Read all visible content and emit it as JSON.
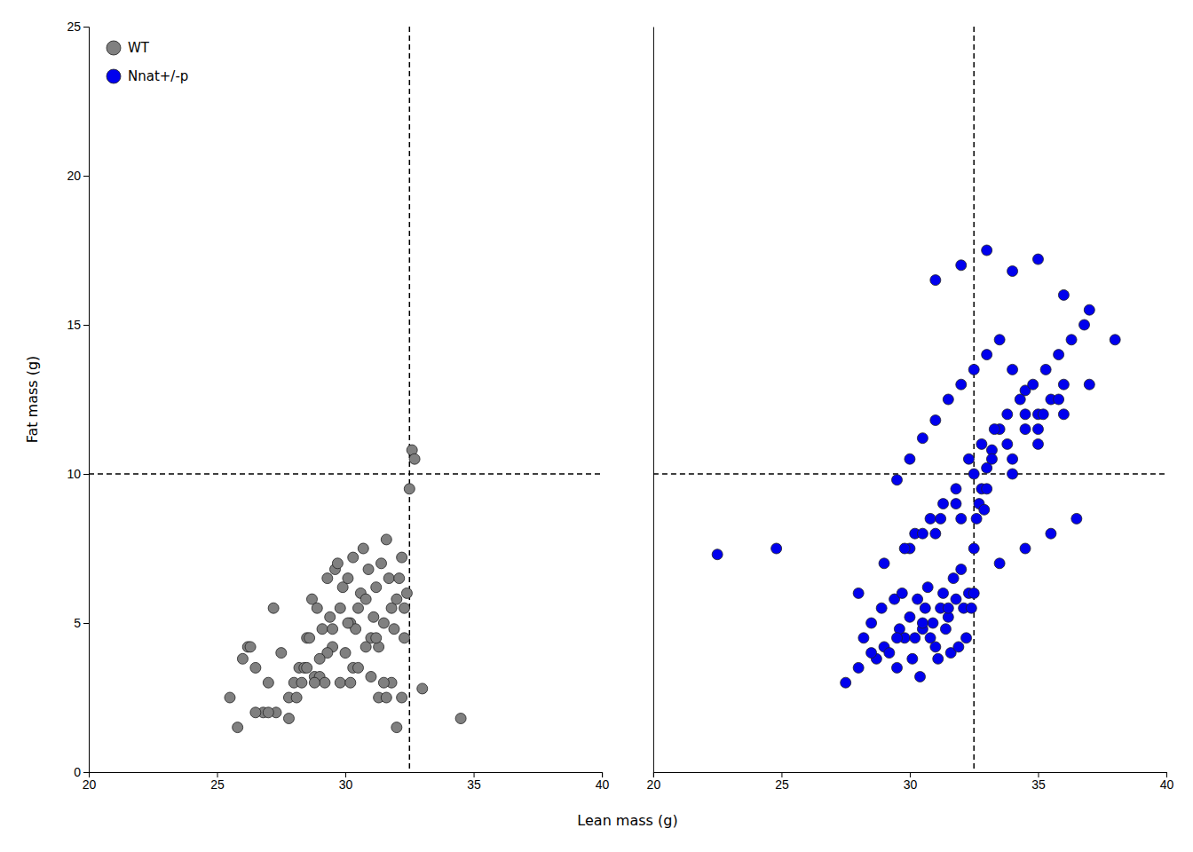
{
  "chart_data": [
    {
      "type": "scatter",
      "xlabel": "Lean mass (g)",
      "ylabel": "Fat mass (g)",
      "xlim": [
        20,
        40
      ],
      "ylim": [
        0,
        25
      ],
      "xticks": [
        20,
        25,
        30,
        35,
        40
      ],
      "yticks": [
        0,
        5,
        10,
        15,
        20,
        25
      ],
      "hlines": [
        10.0
      ],
      "vlines": [
        32.5
      ],
      "legend": "upper left",
      "series": [
        {
          "name": "WT",
          "color": "#808080",
          "marker": "circle",
          "x": [
            25.5,
            26.0,
            26.2,
            26.5,
            26.8,
            27.0,
            27.2,
            27.5,
            27.8,
            28.0,
            28.1,
            28.2,
            28.4,
            28.5,
            28.6,
            28.7,
            28.8,
            28.9,
            29.0,
            29.1,
            29.2,
            29.3,
            29.4,
            29.5,
            29.6,
            29.7,
            29.8,
            29.9,
            30.0,
            30.1,
            30.2,
            30.3,
            30.4,
            30.5,
            30.6,
            30.7,
            30.8,
            30.9,
            31.0,
            31.1,
            31.2,
            31.3,
            31.4,
            31.5,
            31.6,
            31.7,
            31.8,
            31.9,
            32.0,
            32.1,
            32.2,
            32.3,
            32.4,
            32.5,
            32.6,
            32.7,
            33.0,
            34.5,
            26.3,
            27.3,
            28.3,
            29.3,
            30.3,
            31.3,
            32.3,
            25.8,
            27.0,
            28.5,
            29.8,
            30.5,
            31.2,
            31.8,
            32.2,
            26.5,
            27.8,
            29.0,
            30.1,
            31.0,
            31.6,
            32.0,
            28.8,
            29.5,
            30.2,
            30.8,
            31.5
          ],
          "values": [
            2.5,
            3.8,
            4.2,
            3.5,
            2.0,
            3.0,
            5.5,
            4.0,
            2.5,
            3.0,
            2.5,
            3.5,
            3.5,
            4.5,
            4.5,
            5.8,
            3.2,
            5.5,
            3.2,
            4.8,
            3.0,
            6.5,
            5.2,
            4.2,
            6.8,
            7.0,
            5.5,
            6.2,
            4.0,
            6.5,
            5.0,
            7.2,
            4.8,
            5.5,
            6.0,
            7.5,
            5.8,
            6.8,
            4.5,
            5.2,
            6.2,
            4.2,
            7.0,
            5.0,
            7.8,
            6.5,
            5.5,
            4.8,
            5.8,
            6.5,
            7.2,
            5.5,
            6.0,
            9.5,
            10.8,
            10.5,
            2.8,
            1.8,
            4.2,
            2.0,
            3.0,
            4.0,
            3.5,
            2.5,
            4.5,
            1.5,
            2.0,
            3.5,
            3.0,
            3.5,
            4.5,
            3.0,
            2.5,
            2.0,
            1.8,
            3.8,
            5.0,
            3.2,
            2.5,
            1.5,
            3.0,
            4.8,
            3.0,
            4.2,
            3.0
          ]
        }
      ]
    },
    {
      "type": "scatter",
      "xlim": [
        20,
        40
      ],
      "ylim": [
        0,
        25
      ],
      "xticks": [
        20,
        25,
        30,
        35,
        40
      ],
      "tick_labels": "x",
      "hlines": [
        10.0
      ],
      "vlines": [
        32.5
      ],
      "series": [
        {
          "name": "Nnat+/-p",
          "color": "#0000EE",
          "marker": "circle",
          "x": [
            22.5,
            24.8,
            27.5,
            28.0,
            28.2,
            28.5,
            28.7,
            28.9,
            29.0,
            29.2,
            29.4,
            29.5,
            29.6,
            29.7,
            29.8,
            30.0,
            30.1,
            30.2,
            30.3,
            30.4,
            30.5,
            30.6,
            30.7,
            30.8,
            30.9,
            31.0,
            31.1,
            31.2,
            31.3,
            31.4,
            31.5,
            31.6,
            31.7,
            31.8,
            31.9,
            32.0,
            32.1,
            32.2,
            32.3,
            32.4,
            32.5,
            32.6,
            32.7,
            32.8,
            32.9,
            33.0,
            33.2,
            33.5,
            34.0,
            34.5,
            35.0,
            35.5,
            36.0,
            29.5,
            30.0,
            30.5,
            31.0,
            31.5,
            32.0,
            32.5,
            33.0,
            33.5,
            34.0,
            34.5,
            35.0,
            28.0,
            29.0,
            30.0,
            31.0,
            32.0,
            33.0,
            34.0,
            35.0,
            36.0,
            37.0,
            38.0,
            30.2,
            30.8,
            31.3,
            31.8,
            32.3,
            32.8,
            33.3,
            33.8,
            34.3,
            34.8,
            35.3,
            35.8,
            36.3,
            36.8,
            29.8,
            30.5,
            31.2,
            31.8,
            32.5,
            33.2,
            33.8,
            34.5,
            35.2,
            35.8,
            28.5,
            29.5,
            30.5,
            31.5,
            32.5,
            33.5,
            34.5,
            35.5,
            36.5,
            31.0,
            32.0,
            33.0,
            34.0,
            35.0,
            36.0,
            37.0
          ],
          "values": [
            7.3,
            7.5,
            3.0,
            3.5,
            4.5,
            5.0,
            3.8,
            5.5,
            4.2,
            4.0,
            5.8,
            3.5,
            4.8,
            6.0,
            4.5,
            5.2,
            3.8,
            4.5,
            5.8,
            3.2,
            4.8,
            5.5,
            6.2,
            4.5,
            5.0,
            4.2,
            3.8,
            5.5,
            6.0,
            4.8,
            5.2,
            4.0,
            6.5,
            5.8,
            4.2,
            6.8,
            5.5,
            4.5,
            6.0,
            5.5,
            7.5,
            8.5,
            9.0,
            9.5,
            8.8,
            10.2,
            10.8,
            11.5,
            10.5,
            12.0,
            11.5,
            12.5,
            13.0,
            9.8,
            10.5,
            11.2,
            11.8,
            12.5,
            13.0,
            13.5,
            14.0,
            14.5,
            13.5,
            12.8,
            12.0,
            6.0,
            7.0,
            7.5,
            8.0,
            8.5,
            9.5,
            10.0,
            11.0,
            12.0,
            13.0,
            14.5,
            8.0,
            8.5,
            9.0,
            9.5,
            10.5,
            11.0,
            11.5,
            12.0,
            12.5,
            13.0,
            13.5,
            14.0,
            14.5,
            15.0,
            7.5,
            8.0,
            8.5,
            9.0,
            10.0,
            10.5,
            11.0,
            11.5,
            12.0,
            12.5,
            4.0,
            4.5,
            5.0,
            5.5,
            6.0,
            7.0,
            7.5,
            8.0,
            8.5,
            16.5,
            17.0,
            17.5,
            16.8,
            17.2,
            16.0,
            15.5
          ]
        }
      ]
    }
  ]
}
